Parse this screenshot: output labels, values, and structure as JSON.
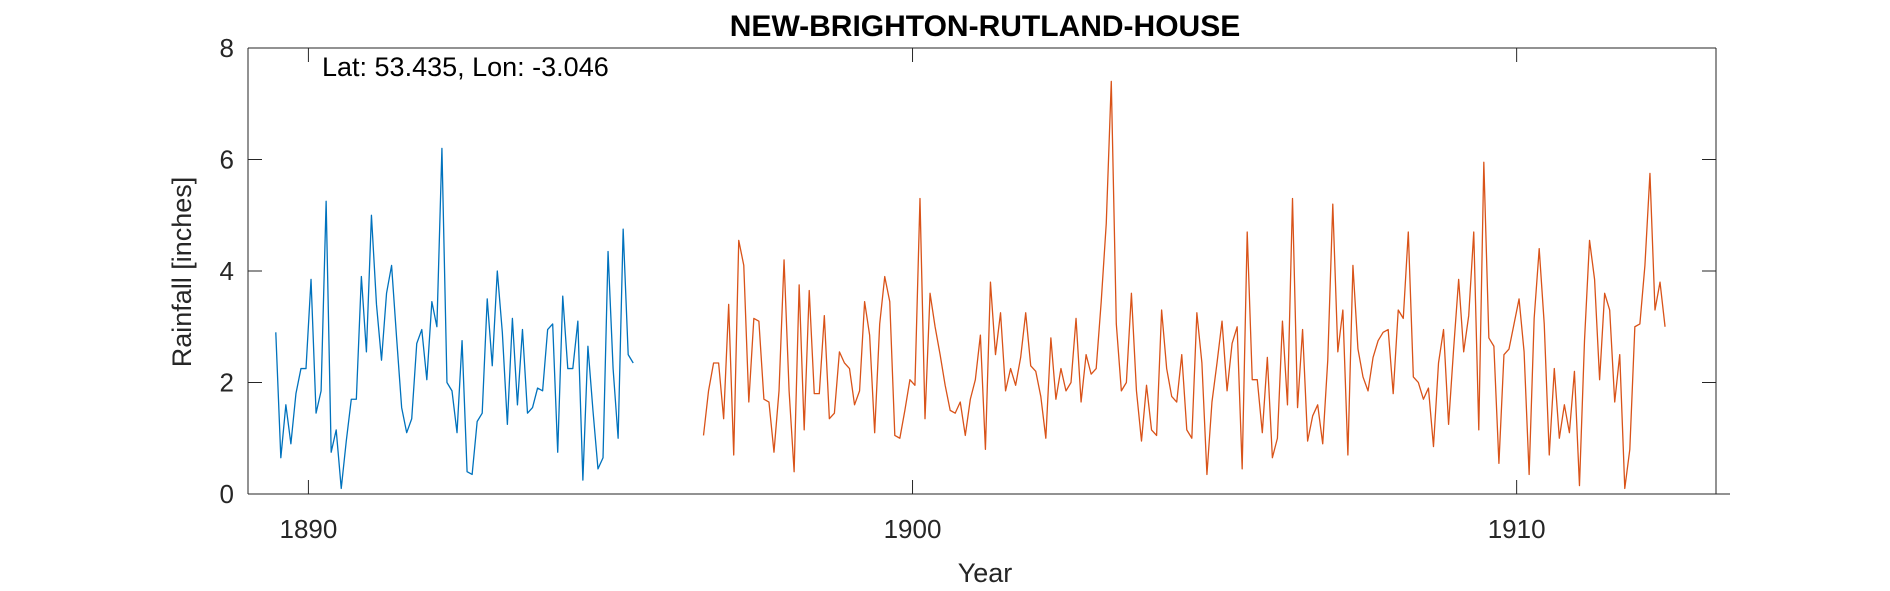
{
  "chart_data": {
    "type": "line",
    "title": "NEW-BRIGHTON-RUTLAND-HOUSE",
    "annotation": "Lat: 53.435, Lon: -3.046",
    "xlabel": "Year",
    "ylabel": "Rainfall [inches]",
    "xlim": [
      1889,
      1913.3
    ],
    "ylim": [
      0,
      8
    ],
    "xticks": [
      1890,
      1900,
      1910
    ],
    "yticks": [
      0,
      2,
      4,
      6,
      8
    ],
    "grid": false,
    "colors": [
      "#0072BD",
      "#D95319"
    ],
    "series": [
      {
        "x_start": 1889.46,
        "x_step": 0.0833333,
        "values": [
          2.9,
          0.65,
          1.6,
          0.9,
          1.8,
          2.25,
          2.25,
          3.85,
          1.45,
          1.85,
          5.25,
          0.75,
          1.15,
          0.1,
          0.95,
          1.7,
          1.7,
          3.9,
          2.55,
          5.0,
          3.4,
          2.4,
          3.6,
          4.1,
          2.8,
          1.55,
          1.1,
          1.35,
          2.7,
          2.95,
          2.05,
          3.45,
          3.0,
          6.2,
          2.0,
          1.85,
          1.1,
          2.75,
          0.4,
          0.35,
          1.3,
          1.45,
          3.5,
          2.3,
          4.0,
          2.9,
          1.25,
          3.15,
          1.6,
          2.95,
          1.45,
          1.55,
          1.9,
          1.85,
          2.95,
          3.05,
          0.75,
          3.55,
          2.25,
          2.25,
          3.1,
          0.25,
          2.65,
          1.5,
          0.45,
          0.65,
          4.35,
          2.25,
          1.0,
          4.75,
          2.5,
          2.35
        ]
      },
      {
        "x_start": 1896.54,
        "x_step": 0.0833333,
        "values": [
          1.05,
          1.85,
          2.35,
          2.35,
          1.35,
          3.4,
          0.7,
          4.55,
          4.1,
          1.65,
          3.15,
          3.1,
          1.7,
          1.65,
          0.75,
          1.85,
          4.2,
          1.85,
          0.4,
          3.75,
          1.15,
          3.65,
          1.8,
          1.8,
          3.2,
          1.35,
          1.45,
          2.55,
          2.35,
          2.25,
          1.6,
          1.85,
          3.45,
          2.85,
          1.1,
          3.05,
          3.9,
          3.45,
          1.05,
          1.0,
          1.5,
          2.05,
          1.95,
          5.3,
          1.35,
          3.6,
          3.0,
          2.5,
          1.95,
          1.5,
          1.45,
          1.65,
          1.05,
          1.7,
          2.05,
          2.85,
          0.8,
          3.8,
          2.5,
          3.25,
          1.85,
          2.25,
          1.95,
          2.45,
          3.25,
          2.3,
          2.2,
          1.75,
          1.0,
          2.8,
          1.7,
          2.25,
          1.85,
          2.0,
          3.15,
          1.65,
          2.5,
          2.15,
          2.25,
          3.45,
          4.85,
          7.4,
          3.05,
          1.85,
          2.0,
          3.6,
          1.85,
          0.95,
          1.95,
          1.15,
          1.05,
          3.3,
          2.25,
          1.75,
          1.65,
          2.5,
          1.15,
          1.0,
          3.25,
          2.35,
          0.35,
          1.65,
          2.35,
          3.1,
          1.85,
          2.7,
          3.0,
          0.45,
          4.7,
          2.05,
          2.05,
          1.1,
          2.45,
          0.65,
          1.0,
          3.1,
          1.6,
          5.3,
          1.55,
          2.95,
          0.95,
          1.4,
          1.6,
          0.9,
          2.4,
          5.2,
          2.55,
          3.3,
          0.7,
          4.1,
          2.6,
          2.1,
          1.85,
          2.45,
          2.75,
          2.9,
          2.95,
          1.8,
          3.3,
          3.15,
          4.7,
          2.1,
          2.0,
          1.7,
          1.9,
          0.85,
          2.35,
          2.95,
          1.25,
          2.6,
          3.85,
          2.55,
          3.2,
          4.7,
          1.15,
          5.95,
          2.8,
          2.65,
          0.55,
          2.5,
          2.6,
          3.05,
          3.5,
          2.55,
          0.35,
          3.15,
          4.4,
          3.05,
          0.7,
          2.25,
          1.0,
          1.6,
          1.1,
          2.2,
          0.15,
          2.75,
          4.55,
          3.85,
          2.05,
          3.6,
          3.3,
          1.65,
          2.5,
          0.1,
          0.8,
          3.0,
          3.05,
          4.1,
          5.75,
          3.3,
          3.8,
          3.0
        ]
      }
    ]
  }
}
